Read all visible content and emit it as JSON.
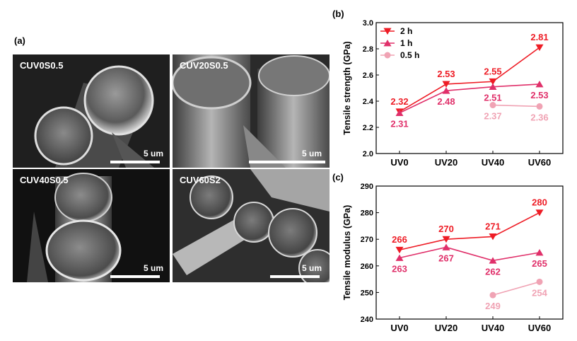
{
  "panels": {
    "a": {
      "label": "(a)"
    },
    "b": {
      "label": "(b)"
    },
    "c": {
      "label": "(c)"
    }
  },
  "sem_images": [
    {
      "label": "CUV0S0.5",
      "scale": "5 um"
    },
    {
      "label": "CUV20S0.5",
      "scale": "5 um"
    },
    {
      "label": "CUV40S0.5",
      "scale": "5 um"
    },
    {
      "label": "CUV60S2",
      "scale": "5 um"
    }
  ],
  "colors": {
    "2h": "#ee1c25",
    "1h": "#e0306a",
    "0.5h": "#f0a3b4"
  },
  "chart_data": [
    {
      "type": "line",
      "title": "",
      "xlabel": "",
      "ylabel": "Tensile strength (GPa)",
      "categories": [
        "UV0",
        "UV20",
        "UV40",
        "UV60"
      ],
      "ylim": [
        2.0,
        3.0
      ],
      "yticks": [
        "2.0",
        "2.2",
        "2.4",
        "2.6",
        "2.8",
        "3.0"
      ],
      "legend_position": "top-left",
      "series": [
        {
          "name": "2 h",
          "marker": "triangle-down",
          "color": "#ee1c25",
          "values": [
            2.32,
            2.53,
            2.55,
            2.81
          ],
          "labels": [
            "2.32",
            "2.53",
            "2.55",
            "2.81"
          ],
          "label_pos": "above"
        },
        {
          "name": "1 h",
          "marker": "triangle-up",
          "color": "#e0306a",
          "values": [
            2.31,
            2.48,
            2.51,
            2.53
          ],
          "labels": [
            "2.31",
            "2.48",
            "2.51",
            "2.53"
          ],
          "label_pos": "below"
        },
        {
          "name": "0.5 h",
          "marker": "circle",
          "color": "#f0a3b4",
          "values": [
            null,
            null,
            2.37,
            2.36
          ],
          "labels": [
            "",
            "",
            "2.37",
            "2.36"
          ],
          "label_pos": "below"
        }
      ]
    },
    {
      "type": "line",
      "title": "",
      "xlabel": "",
      "ylabel": "Tensile modulus (GPa)",
      "categories": [
        "UV0",
        "UV20",
        "UV40",
        "UV60"
      ],
      "ylim": [
        240,
        290
      ],
      "yticks": [
        "240",
        "250",
        "260",
        "270",
        "280",
        "290"
      ],
      "series": [
        {
          "name": "2 h",
          "marker": "triangle-down",
          "color": "#ee1c25",
          "values": [
            266,
            270,
            271,
            280
          ],
          "labels": [
            "266",
            "270",
            "271",
            "280"
          ],
          "label_pos": "above"
        },
        {
          "name": "1 h",
          "marker": "triangle-up",
          "color": "#e0306a",
          "values": [
            263,
            267,
            262,
            265
          ],
          "labels": [
            "263",
            "267",
            "262",
            "265"
          ],
          "label_pos": "below"
        },
        {
          "name": "0.5 h",
          "marker": "circle",
          "color": "#f0a3b4",
          "values": [
            null,
            null,
            249,
            254
          ],
          "labels": [
            "",
            "",
            "249",
            "254"
          ],
          "label_pos": "below"
        }
      ]
    }
  ]
}
